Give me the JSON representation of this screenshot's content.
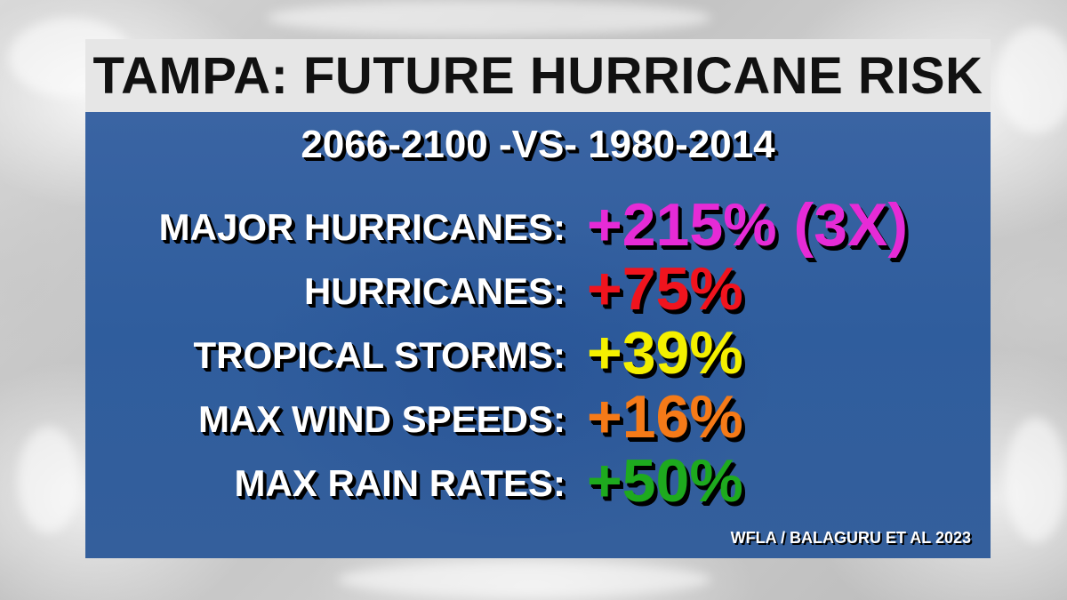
{
  "graphic": {
    "title": "TAMPA: FUTURE HURRICANE RISK",
    "subtitle": "2066-2100 -VS- 1980-2014",
    "rows": [
      {
        "label": "MAJOR HURRICANES:",
        "value": "+215% (3X)",
        "color": "#e62bd6"
      },
      {
        "label": "HURRICANES:",
        "value": "+75%",
        "color": "#f0141e"
      },
      {
        "label": "TROPICAL STORMS:",
        "value": "+39%",
        "color": "#f4f000"
      },
      {
        "label": "MAX WIND SPEEDS:",
        "value": "+16%",
        "color": "#f57a18"
      },
      {
        "label": "MAX RAIN RATES:",
        "value": "+50%",
        "color": "#1eaa1e"
      }
    ],
    "credit": "WFLA / BALAGURU ET AL 2023"
  },
  "colors": {
    "title_bar": "#e6e6e6",
    "panel": "#2f5d9d",
    "title_text": "#111111",
    "label_text": "#ffffff"
  }
}
